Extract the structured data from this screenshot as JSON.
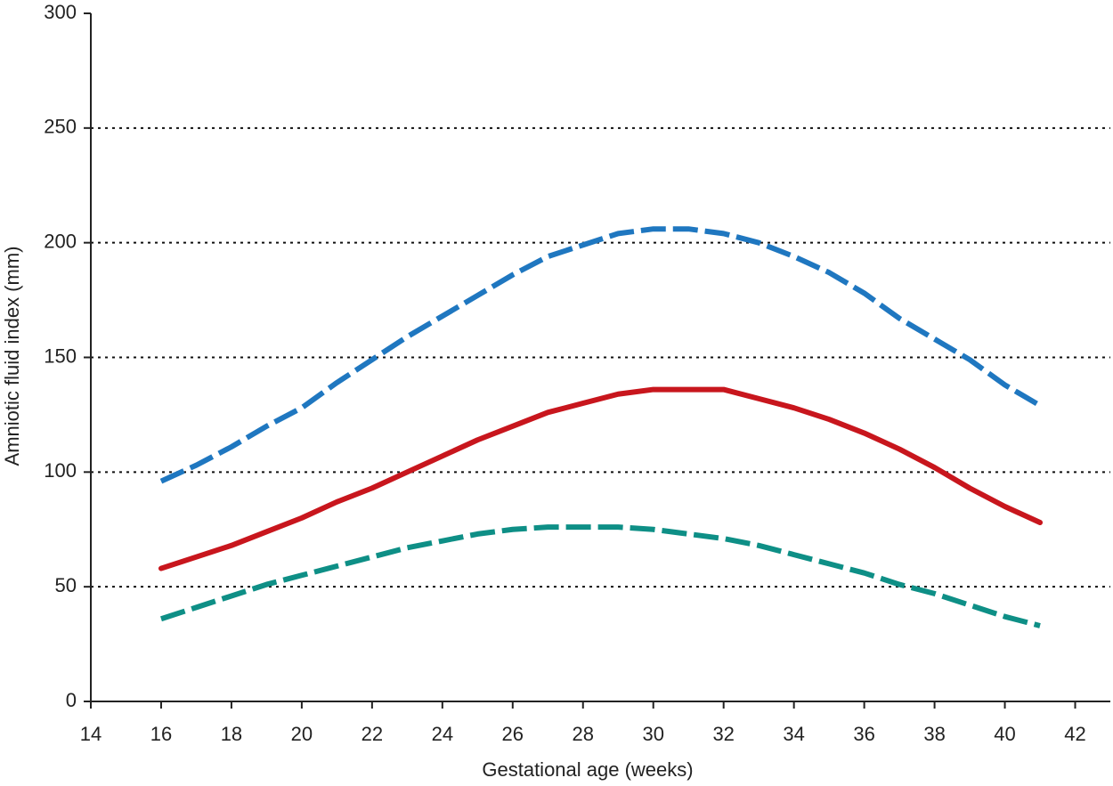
{
  "chart_data": {
    "type": "line",
    "x_label": "Gestational age (weeks)",
    "y_label": "Amniotic fluid index (mm)",
    "xlim": [
      14,
      43
    ],
    "xticks": [
      14,
      16,
      18,
      20,
      22,
      24,
      26,
      28,
      30,
      32,
      34,
      36,
      38,
      40,
      42
    ],
    "ylim": [
      0,
      300
    ],
    "yticks": [
      0,
      50,
      100,
      150,
      200,
      250,
      300
    ],
    "grid": true,
    "x": [
      16,
      17,
      18,
      19,
      20,
      21,
      22,
      23,
      24,
      25,
      26,
      27,
      28,
      29,
      30,
      31,
      32,
      33,
      34,
      35,
      36,
      37,
      38,
      39,
      40,
      41
    ],
    "series": [
      {
        "color": "#1f77c0",
        "style": "dashed",
        "values": [
          96,
          103,
          111,
          120,
          128,
          139,
          149,
          159,
          168,
          177,
          186,
          194,
          199,
          204,
          206,
          206,
          204,
          200,
          194,
          187,
          178,
          167,
          158,
          149,
          138,
          129
        ]
      },
      {
        "color": "#c8161d",
        "style": "solid",
        "values": [
          58,
          63,
          68,
          74,
          80,
          87,
          93,
          100,
          107,
          114,
          120,
          126,
          130,
          134,
          136,
          136,
          136,
          132,
          128,
          123,
          117,
          110,
          102,
          93,
          85,
          78
        ]
      },
      {
        "color": "#0e8f86",
        "style": "dashed",
        "values": [
          36,
          41,
          46,
          51,
          55,
          59,
          63,
          67,
          70,
          73,
          75,
          76,
          76,
          76,
          75,
          73,
          71,
          68,
          64,
          60,
          56,
          51,
          47,
          42,
          37,
          33
        ]
      }
    ]
  }
}
